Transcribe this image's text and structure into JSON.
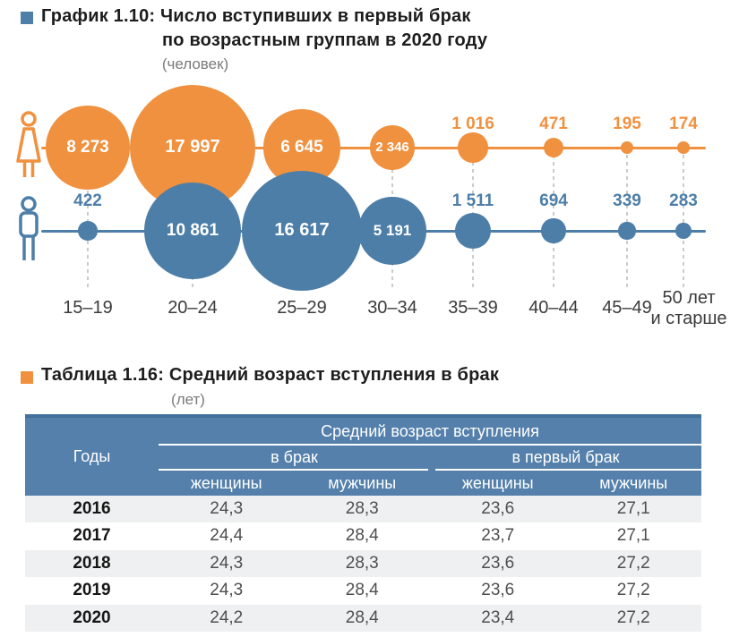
{
  "colors": {
    "women_orange": "#F0913F",
    "men_blue": "#4D7EA8",
    "table_header_blue": "#5480AB",
    "table_header_top_border": "#40709B",
    "alt_row_gray": "#EFF0F1"
  },
  "chart": {
    "bullet": "blue-square-bullet",
    "title_line1": "График 1.10: Число вступивших в первый брак",
    "title_line2": "по возрастным группам в 2020 году",
    "unit": "(человек)",
    "icons": {
      "female": "woman-outline-icon",
      "male": "man-outline-icon"
    },
    "axis_labels": [
      [
        "15–19"
      ],
      [
        "20–24"
      ],
      [
        "25–29"
      ],
      [
        "30–34"
      ],
      [
        "35–39"
      ],
      [
        "40–44"
      ],
      [
        "45–49"
      ],
      [
        "50 лет",
        "и старше"
      ]
    ]
  },
  "chart_data": [
    {
      "type": "scatter",
      "subtype": "bubble-rows",
      "title": "График 1.10: Число вступивших в первый брак по возрастным группам в 2020 году",
      "unit": "человек",
      "categories": [
        "15–19",
        "20–24",
        "25–29",
        "30–34",
        "35–39",
        "40–44",
        "45–49",
        "50 лет и старше"
      ],
      "size_encoding": "bubble area proportional to value",
      "series": [
        {
          "name": "женщины",
          "color": "#F0913F",
          "values": [
            8273,
            17997,
            6645,
            2346,
            1016,
            471,
            195,
            174
          ],
          "labels": [
            "8 273",
            "17 997",
            "6 645",
            "2 346",
            "1 016",
            "471",
            "195",
            "174"
          ]
        },
        {
          "name": "мужчины",
          "color": "#4D7EA8",
          "values": [
            422,
            10861,
            16617,
            5191,
            1511,
            694,
            339,
            283
          ],
          "labels": [
            "422",
            "10 861",
            "16 617",
            "5 191",
            "1 511",
            "694",
            "339",
            "283"
          ]
        }
      ]
    },
    {
      "type": "table",
      "title": "Таблица 1.16: Средний возраст вступления в брак",
      "unit": "лет",
      "columns": [
        "Годы",
        "в брак — женщины",
        "в брак — мужчины",
        "в первый брак — женщины",
        "в первый брак — мужчины"
      ],
      "rows": [
        [
          2016,
          24.3,
          28.3,
          23.6,
          27.1
        ],
        [
          2017,
          24.4,
          28.4,
          23.7,
          27.1
        ],
        [
          2018,
          24.3,
          28.3,
          23.6,
          27.2
        ],
        [
          2019,
          24.3,
          28.4,
          23.6,
          27.2
        ],
        [
          2020,
          24.2,
          28.4,
          23.4,
          27.2
        ]
      ]
    }
  ],
  "table": {
    "bullet": "orange-square-bullet",
    "title": "Таблица 1.16: Средний возраст вступления в брак",
    "unit": "(лет)",
    "header": {
      "years": "Годы",
      "group": "Средний возраст вступления",
      "sub1": "в брак",
      "sub2": "в первый брак",
      "cols": [
        "женщины",
        "мужчины",
        "женщины",
        "мужчины"
      ]
    },
    "rows": [
      {
        "year": "2016",
        "values": [
          "24,3",
          "28,3",
          "23,6",
          "27,1"
        ]
      },
      {
        "year": "2017",
        "values": [
          "24,4",
          "28,4",
          "23,7",
          "27,1"
        ]
      },
      {
        "year": "2018",
        "values": [
          "24,3",
          "28,3",
          "23,6",
          "27,2"
        ]
      },
      {
        "year": "2019",
        "values": [
          "24,3",
          "28,4",
          "23,6",
          "27,2"
        ]
      },
      {
        "year": "2020",
        "values": [
          "24,2",
          "28,4",
          "23,4",
          "27,2"
        ]
      }
    ]
  }
}
